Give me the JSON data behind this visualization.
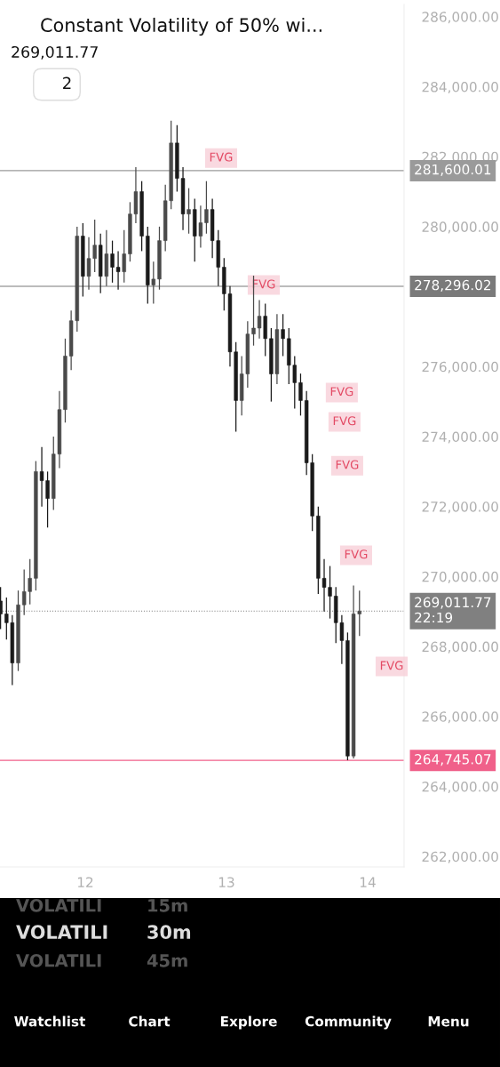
{
  "chart_data": {
    "type": "candlestick",
    "title": "Constant Volatility of 50% wi...",
    "subtitle": "269,011.77",
    "colors": [
      "#1a1a1a",
      "#1a1a1a",
      "#1a1a1a",
      "#4a4a4a",
      "#4a4a4a",
      "#4a4a4a",
      "#4a4a4a",
      "#1a1a1a",
      "#1a1a1a",
      "#4a4a4a",
      "#4a4a4a",
      "#4a4a4a",
      "#4a4a4a",
      "#4a4a4a",
      "#1a1a1a",
      "#4a4a4a",
      "#4a4a4a",
      "#1a1a1a",
      "#4a4a4a",
      "#1a1a1a",
      "#1a1a1a",
      "#4a4a4a",
      "#4a4a4a",
      "#4a4a4a",
      "#1a1a1a",
      "#1a1a1a",
      "#4a4a4a",
      "#4a4a4a",
      "#4a4a4a",
      "#4a4a4a",
      "#1a1a1a",
      "#1a1a1a",
      "#4a4a4a",
      "#1a1a1a",
      "#4a4a4a",
      "#4a4a4a",
      "#1a1a1a",
      "#1a1a1a",
      "#1a1a1a",
      "#1a1a1a",
      "#1a1a1a",
      "#4a4a4a",
      "#4a4a4a",
      "#4a4a4a",
      "#4a4a4a",
      "#1a1a1a",
      "#1a1a1a",
      "#4a4a4a",
      "#1a1a1a",
      "#1a1a1a",
      "#1a1a1a",
      "#1a1a1a",
      "#1a1a1a",
      "#1a1a1a",
      "#1a1a1a",
      "#1a1a1a",
      "#1a1a1a",
      "#1a1a1a",
      "#1a1a1a",
      "#1a1a1a",
      "#4a4a4a",
      "#4a4a4a"
    ],
    "x": [
      11.4,
      11.442,
      11.483,
      11.525,
      11.567,
      11.608,
      11.65,
      11.692,
      11.733,
      11.775,
      11.817,
      11.858,
      11.9,
      11.942,
      11.983,
      12.025,
      12.067,
      12.108,
      12.15,
      12.192,
      12.233,
      12.275,
      12.317,
      12.358,
      12.4,
      12.442,
      12.483,
      12.525,
      12.567,
      12.608,
      12.65,
      12.692,
      12.733,
      12.775,
      12.817,
      12.858,
      12.9,
      12.942,
      12.983,
      13.025,
      13.067,
      13.108,
      13.15,
      13.192,
      13.233,
      13.275,
      13.317,
      13.358,
      13.4,
      13.442,
      13.483,
      13.525,
      13.567,
      13.608,
      13.65,
      13.692,
      13.733,
      13.775,
      13.817,
      13.858,
      13.9,
      13.942
    ],
    "ohlc": [
      [
        269300,
        269700,
        268500,
        268930
      ],
      [
        268930,
        269400,
        268200,
        268680
      ],
      [
        268680,
        268900,
        266900,
        267530
      ],
      [
        267530,
        269600,
        267300,
        269190
      ],
      [
        269190,
        270200,
        268900,
        269570
      ],
      [
        269570,
        270500,
        269200,
        269950
      ],
      [
        269950,
        273300,
        269600,
        273000
      ],
      [
        273000,
        273700,
        272000,
        272740
      ],
      [
        272740,
        273000,
        271400,
        272230
      ],
      [
        272230,
        274000,
        271900,
        273500
      ],
      [
        273500,
        275300,
        273100,
        274770
      ],
      [
        274770,
        276800,
        274400,
        276300
      ],
      [
        276300,
        277600,
        275900,
        277310
      ],
      [
        277310,
        280000,
        277000,
        279730
      ],
      [
        279730,
        280100,
        278000,
        278580
      ],
      [
        278580,
        279700,
        278200,
        279090
      ],
      [
        279090,
        280200,
        278700,
        279470
      ],
      [
        279470,
        279800,
        278100,
        278580
      ],
      [
        278580,
        279900,
        278300,
        279220
      ],
      [
        279220,
        279600,
        278400,
        278840
      ],
      [
        278840,
        279300,
        278200,
        278710
      ],
      [
        278710,
        279900,
        278400,
        279220
      ],
      [
        279220,
        280700,
        279000,
        280360
      ],
      [
        280360,
        281700,
        280100,
        281000
      ],
      [
        281000,
        281300,
        279300,
        279730
      ],
      [
        279730,
        280000,
        277800,
        278330
      ],
      [
        278330,
        279000,
        277800,
        278500
      ],
      [
        278500,
        280000,
        278200,
        279600
      ],
      [
        279600,
        281200,
        279300,
        280740
      ],
      [
        280740,
        283030,
        280500,
        282390
      ],
      [
        282390,
        282900,
        281000,
        281380
      ],
      [
        281380,
        281700,
        279900,
        280360
      ],
      [
        280360,
        281100,
        279800,
        280490
      ],
      [
        280490,
        280800,
        279000,
        279730
      ],
      [
        279730,
        280600,
        279400,
        280110
      ],
      [
        280110,
        281300,
        279800,
        280490
      ],
      [
        280490,
        280800,
        279100,
        279600
      ],
      [
        279600,
        279900,
        278300,
        278840
      ],
      [
        278840,
        279100,
        277600,
        278080
      ],
      [
        278080,
        278300,
        276000,
        276420
      ],
      [
        276420,
        276700,
        274140,
        275030
      ],
      [
        275030,
        276300,
        274600,
        275790
      ],
      [
        275790,
        277300,
        275400,
        276930
      ],
      [
        276930,
        278600,
        276600,
        277100
      ],
      [
        277100,
        277900,
        276800,
        277440
      ],
      [
        277440,
        277800,
        276300,
        276800
      ],
      [
        276800,
        277100,
        275000,
        275790
      ],
      [
        275790,
        277500,
        275500,
        277060
      ],
      [
        277060,
        277500,
        276300,
        276800
      ],
      [
        276800,
        277100,
        275500,
        276040
      ],
      [
        276040,
        276300,
        274800,
        275540
      ],
      [
        275540,
        275800,
        274600,
        275030
      ],
      [
        275030,
        275300,
        272900,
        273250
      ],
      [
        273250,
        273500,
        271300,
        271730
      ],
      [
        271730,
        272000,
        269500,
        269950
      ],
      [
        269950,
        270500,
        269000,
        269690
      ],
      [
        269690,
        270300,
        268800,
        269440
      ],
      [
        269440,
        269700,
        268100,
        268680
      ],
      [
        268680,
        268900,
        267500,
        268170
      ],
      [
        268170,
        268400,
        264750,
        264870
      ],
      [
        264870,
        269740,
        264800,
        268930
      ],
      [
        268930,
        269600,
        268300,
        269012
      ]
    ],
    "xlim": [
      11.396,
      14.258
    ],
    "xticks": [
      12,
      13,
      14
    ],
    "ylim": [
      261700,
      286350
    ],
    "yticks": [
      {
        "value": 262000,
        "label": "262,000.00"
      },
      {
        "value": 264000,
        "label": "264,000.00"
      },
      {
        "value": 266000,
        "label": "266,000.00"
      },
      {
        "value": 268000,
        "label": "268,000.00"
      },
      {
        "value": 270000,
        "label": "270,000.00"
      },
      {
        "value": 272000,
        "label": "272,000.00"
      },
      {
        "value": 274000,
        "label": "274,000.00"
      },
      {
        "value": 276000,
        "label": "276,000.00"
      },
      {
        "value": 280000,
        "label": "280,000.00"
      },
      {
        "value": 282000,
        "label": "282,000.00"
      },
      {
        "value": 284000,
        "label": "284,000.00"
      },
      {
        "value": 286000,
        "label": "286,000.00"
      }
    ],
    "grid": false,
    "ref_lines": [
      {
        "axis": "y",
        "value": 269011.77,
        "label": "269,011.77\n22:19",
        "color": "#808080",
        "line_style": "dotted"
      },
      {
        "axis": "y",
        "value": 281600.01,
        "label": "281,600.01",
        "color": "#9a9a9a",
        "line_style": "solid"
      },
      {
        "axis": "y",
        "value": 278296.02,
        "label": "278,296.02",
        "color": "#7a7a7a",
        "line_style": "solid"
      },
      {
        "axis": "y",
        "value": 264745.07,
        "label": "264,745.07",
        "color": "#f0608a",
        "line_style": "solid"
      }
    ],
    "annotations": [
      "2",
      "VOLATILI",
      "15m",
      "VOLATILI",
      "30m",
      "VOLATILI",
      "45m",
      "Watchlist",
      "Chart",
      "Explore",
      "Community",
      "Menu",
      {
        "text": "FVG",
        "x": 12.962,
        "y": 281960
      },
      {
        "text": "FVG",
        "x": 13.264,
        "y": 278330
      },
      {
        "text": "FVG",
        "x": 13.817,
        "y": 275260
      },
      {
        "text": "FVG",
        "x": 13.836,
        "y": 274420
      },
      {
        "text": "FVG",
        "x": 13.855,
        "y": 273170
      },
      {
        "text": "FVG",
        "x": 13.918,
        "y": 270610
      },
      {
        "text": "FVG",
        "x": 14.17,
        "y": 267430
      }
    ]
  }
}
